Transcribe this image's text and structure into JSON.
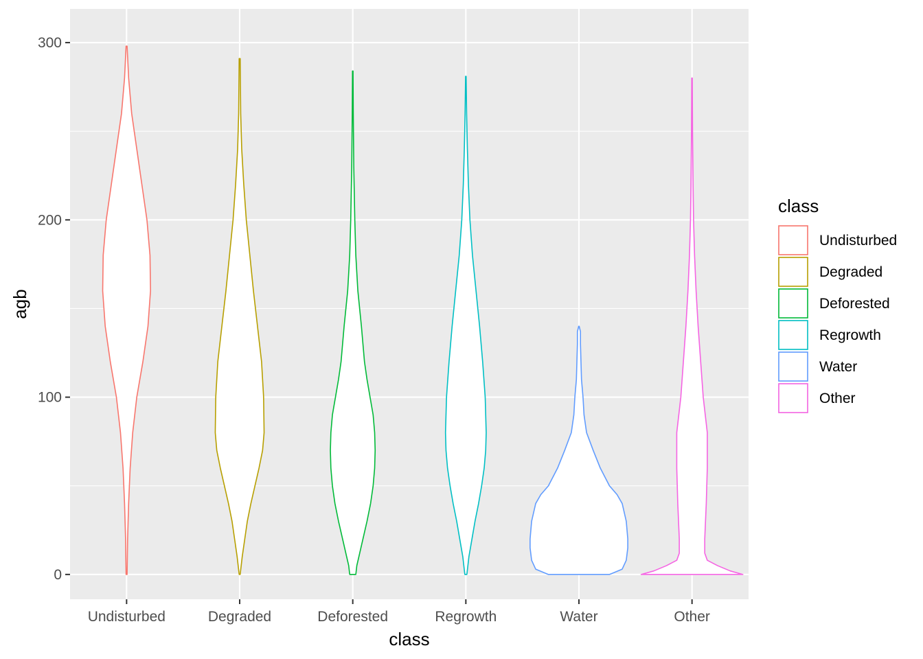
{
  "chart_data": {
    "type": "violin",
    "xlabel": "class",
    "ylabel": "agb",
    "ylim": [
      -14,
      319
    ],
    "yticks": [
      0,
      100,
      200,
      300
    ],
    "y_minor_ticks": [
      50,
      150,
      250
    ],
    "grid": true,
    "panel_background": "#ebebeb",
    "grid_color": "#ffffff",
    "legend": {
      "title": "class",
      "position": "right"
    },
    "categories": [
      "Undisturbed",
      "Degraded",
      "Deforested",
      "Regrowth",
      "Water",
      "Other"
    ],
    "series": [
      {
        "name": "Undisturbed",
        "color": "#F8766D",
        "min": 0,
        "max": 298,
        "profile": [
          [
            0,
            0.01
          ],
          [
            20,
            0.02
          ],
          [
            40,
            0.04
          ],
          [
            60,
            0.07
          ],
          [
            80,
            0.12
          ],
          [
            100,
            0.2
          ],
          [
            120,
            0.32
          ],
          [
            140,
            0.42
          ],
          [
            160,
            0.47
          ],
          [
            180,
            0.46
          ],
          [
            200,
            0.4
          ],
          [
            220,
            0.3
          ],
          [
            240,
            0.2
          ],
          [
            260,
            0.1
          ],
          [
            280,
            0.04
          ],
          [
            298,
            0.01
          ]
        ]
      },
      {
        "name": "Degraded",
        "color": "#B79F00",
        "min": 0,
        "max": 291,
        "profile": [
          [
            0,
            0.01
          ],
          [
            10,
            0.05
          ],
          [
            20,
            0.1
          ],
          [
            30,
            0.15
          ],
          [
            40,
            0.22
          ],
          [
            50,
            0.3
          ],
          [
            60,
            0.38
          ],
          [
            70,
            0.45
          ],
          [
            80,
            0.48
          ],
          [
            100,
            0.47
          ],
          [
            120,
            0.43
          ],
          [
            140,
            0.35
          ],
          [
            160,
            0.27
          ],
          [
            180,
            0.2
          ],
          [
            200,
            0.13
          ],
          [
            220,
            0.08
          ],
          [
            240,
            0.04
          ],
          [
            260,
            0.02
          ],
          [
            291,
            0.01
          ]
        ]
      },
      {
        "name": "Deforested",
        "color": "#00BA38",
        "min": 0,
        "max": 284,
        "profile": [
          [
            0,
            0.06
          ],
          [
            5,
            0.08
          ],
          [
            10,
            0.12
          ],
          [
            20,
            0.2
          ],
          [
            30,
            0.28
          ],
          [
            40,
            0.35
          ],
          [
            50,
            0.4
          ],
          [
            60,
            0.43
          ],
          [
            70,
            0.44
          ],
          [
            80,
            0.43
          ],
          [
            90,
            0.4
          ],
          [
            100,
            0.34
          ],
          [
            110,
            0.28
          ],
          [
            120,
            0.23
          ],
          [
            140,
            0.17
          ],
          [
            160,
            0.1
          ],
          [
            180,
            0.06
          ],
          [
            200,
            0.04
          ],
          [
            230,
            0.02
          ],
          [
            260,
            0.01
          ],
          [
            284,
            0.005
          ]
        ]
      },
      {
        "name": "Regrowth",
        "color": "#00BFC4",
        "min": 0,
        "max": 281,
        "profile": [
          [
            0,
            0.02
          ],
          [
            10,
            0.06
          ],
          [
            20,
            0.12
          ],
          [
            30,
            0.18
          ],
          [
            40,
            0.25
          ],
          [
            50,
            0.31
          ],
          [
            60,
            0.36
          ],
          [
            70,
            0.39
          ],
          [
            80,
            0.4
          ],
          [
            100,
            0.38
          ],
          [
            120,
            0.33
          ],
          [
            140,
            0.27
          ],
          [
            160,
            0.2
          ],
          [
            180,
            0.13
          ],
          [
            200,
            0.08
          ],
          [
            220,
            0.05
          ],
          [
            240,
            0.03
          ],
          [
            260,
            0.015
          ],
          [
            281,
            0.005
          ]
        ]
      },
      {
        "name": "Water",
        "color": "#619CFF",
        "min": 0,
        "max": 140,
        "profile": [
          [
            0,
            0.6
          ],
          [
            3,
            0.85
          ],
          [
            8,
            0.93
          ],
          [
            15,
            0.96
          ],
          [
            20,
            0.96
          ],
          [
            30,
            0.93
          ],
          [
            40,
            0.85
          ],
          [
            45,
            0.75
          ],
          [
            50,
            0.6
          ],
          [
            60,
            0.42
          ],
          [
            70,
            0.28
          ],
          [
            80,
            0.15
          ],
          [
            90,
            0.1
          ],
          [
            100,
            0.08
          ],
          [
            110,
            0.05
          ],
          [
            120,
            0.04
          ],
          [
            130,
            0.03
          ],
          [
            137,
            0.03
          ],
          [
            140,
            0.005
          ]
        ]
      },
      {
        "name": "Other",
        "color": "#F564E3",
        "min": 0,
        "max": 280,
        "profile": [
          [
            0,
            1.0
          ],
          [
            2,
            0.75
          ],
          [
            5,
            0.5
          ],
          [
            8,
            0.3
          ],
          [
            12,
            0.25
          ],
          [
            20,
            0.25
          ],
          [
            40,
            0.28
          ],
          [
            60,
            0.3
          ],
          [
            80,
            0.3
          ],
          [
            90,
            0.26
          ],
          [
            100,
            0.22
          ],
          [
            120,
            0.17
          ],
          [
            140,
            0.12
          ],
          [
            160,
            0.08
          ],
          [
            180,
            0.05
          ],
          [
            200,
            0.03
          ],
          [
            220,
            0.02
          ],
          [
            250,
            0.01
          ],
          [
            280,
            0.005
          ]
        ]
      }
    ]
  }
}
